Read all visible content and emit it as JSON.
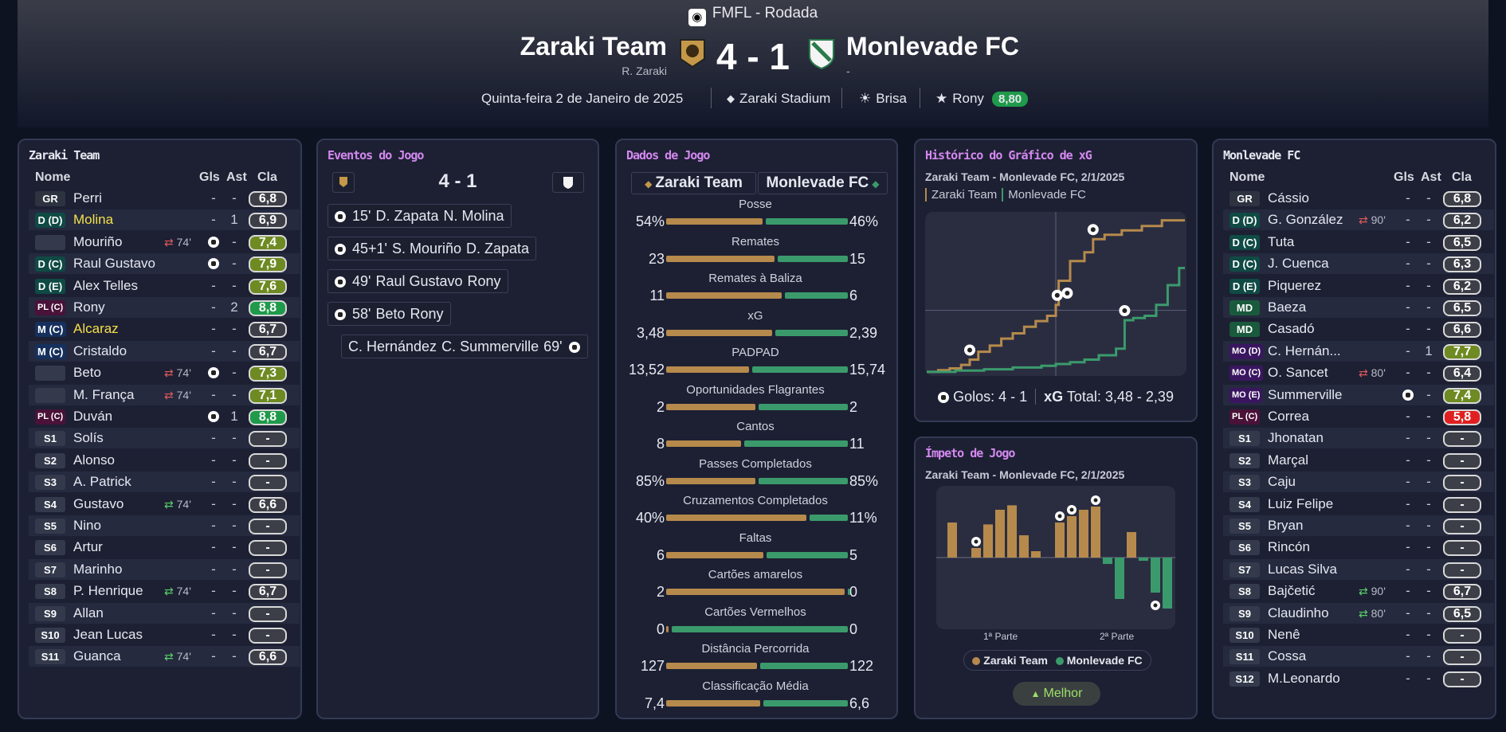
{
  "header": {
    "competition": "FMFL - Rodada",
    "home_name": "Zaraki Team",
    "home_manager": "R. Zaraki",
    "score": "4 - 1",
    "away_name": "Monlevade FC",
    "away_manager": "-",
    "date": "Quinta-feira 2 de Janeiro de 2025",
    "stadium": "Zaraki Stadium",
    "weather": "Brisa",
    "best_player": "Rony",
    "best_rating": "8,80"
  },
  "colors": {
    "home": "#b68a4c",
    "away": "#3b9a6c",
    "good": "#1f9a4a",
    "mid": "#6e8a22",
    "bad": "#e02020",
    "neutral": "#3c3f47",
    "title_purple": "#d489f0",
    "yellow": "#f4e04a"
  },
  "columns": {
    "name": "Nome",
    "goals": "Gls",
    "assists": "Ast",
    "rating": "Cla"
  },
  "home_panel": {
    "title": "Zaraki Team",
    "players": [
      {
        "pos": "GR",
        "name": "Perri",
        "goals": "-",
        "ast": "-",
        "rating": "6,8",
        "rc": "neutral"
      },
      {
        "pos": "D (D)",
        "name": "Molina",
        "hl": true,
        "goals": "-",
        "ast": "1",
        "rating": "6,9",
        "rc": "neutral"
      },
      {
        "pos": "",
        "name": "Mouriño",
        "sub": "74'",
        "subtype": "out",
        "goal": true,
        "goals": "",
        "ast": "-",
        "rating": "7,4",
        "rc": "mid"
      },
      {
        "pos": "D (C)",
        "name": "Raul Gustavo",
        "goal": true,
        "goals": "",
        "ast": "-",
        "rating": "7,9",
        "rc": "mid"
      },
      {
        "pos": "D (E)",
        "name": "Alex Telles",
        "goals": "-",
        "ast": "-",
        "rating": "7,6",
        "rc": "mid"
      },
      {
        "pos": "PL (C)",
        "name": "Rony",
        "goals": "-",
        "ast": "2",
        "rating": "8,8",
        "rc": "good"
      },
      {
        "pos": "M (C)",
        "name": "Alcaraz",
        "hl": true,
        "goals": "-",
        "ast": "-",
        "rating": "6,7",
        "rc": "neutral"
      },
      {
        "pos": "M (C)",
        "name": "Cristaldo",
        "goals": "-",
        "ast": "-",
        "rating": "6,7",
        "rc": "neutral"
      },
      {
        "pos": "",
        "name": "Beto",
        "sub": "74'",
        "subtype": "out",
        "goal": true,
        "goals": "",
        "ast": "-",
        "rating": "7,3",
        "rc": "mid"
      },
      {
        "pos": "",
        "name": "M. França",
        "sub": "74'",
        "subtype": "out",
        "goals": "-",
        "ast": "-",
        "rating": "7,1",
        "rc": "mid"
      },
      {
        "pos": "PL (C)",
        "name": "Duván",
        "goal": true,
        "goals": "",
        "ast": "1",
        "rating": "8,8",
        "rc": "good"
      },
      {
        "pos": "S1",
        "name": "Solís",
        "goals": "-",
        "ast": "-",
        "rating": "-",
        "rc": "neutral"
      },
      {
        "pos": "S2",
        "name": "Alonso",
        "goals": "-",
        "ast": "-",
        "rating": "-",
        "rc": "neutral"
      },
      {
        "pos": "S3",
        "name": "A. Patrick",
        "goals": "-",
        "ast": "-",
        "rating": "-",
        "rc": "neutral"
      },
      {
        "pos": "S4",
        "name": "Gustavo",
        "sub": "74'",
        "subtype": "in",
        "goals": "-",
        "ast": "-",
        "rating": "6,6",
        "rc": "neutral"
      },
      {
        "pos": "S5",
        "name": "Nino",
        "goals": "-",
        "ast": "-",
        "rating": "-",
        "rc": "neutral"
      },
      {
        "pos": "S6",
        "name": "Artur",
        "goals": "-",
        "ast": "-",
        "rating": "-",
        "rc": "neutral"
      },
      {
        "pos": "S7",
        "name": "Marinho",
        "goals": "-",
        "ast": "-",
        "rating": "-",
        "rc": "neutral"
      },
      {
        "pos": "S8",
        "name": "P. Henrique",
        "sub": "74'",
        "subtype": "in",
        "goals": "-",
        "ast": "-",
        "rating": "6,7",
        "rc": "neutral"
      },
      {
        "pos": "S9",
        "name": "Allan",
        "goals": "-",
        "ast": "-",
        "rating": "-",
        "rc": "neutral"
      },
      {
        "pos": "S10",
        "name": "Jean Lucas",
        "goals": "-",
        "ast": "-",
        "rating": "-",
        "rc": "neutral"
      },
      {
        "pos": "S11",
        "name": "Guanca",
        "sub": "74'",
        "subtype": "in",
        "goals": "-",
        "ast": "-",
        "rating": "6,6",
        "rc": "neutral"
      }
    ]
  },
  "away_panel": {
    "title": "Monlevade FC",
    "players": [
      {
        "pos": "GR",
        "name": "Cássio",
        "goals": "-",
        "ast": "-",
        "rating": "6,8",
        "rc": "neutral"
      },
      {
        "pos": "D (D)",
        "name": "G. González",
        "sub": "90'",
        "subtype": "out",
        "goals": "-",
        "ast": "-",
        "rating": "6,2",
        "rc": "neutral"
      },
      {
        "pos": "D (C)",
        "name": "Tuta",
        "goals": "-",
        "ast": "-",
        "rating": "6,5",
        "rc": "neutral"
      },
      {
        "pos": "D (C)",
        "name": "J. Cuenca",
        "goals": "-",
        "ast": "-",
        "rating": "6,3",
        "rc": "neutral"
      },
      {
        "pos": "D (E)",
        "name": "Piquerez",
        "goals": "-",
        "ast": "-",
        "rating": "6,2",
        "rc": "neutral"
      },
      {
        "pos": "MD",
        "name": "Baeza",
        "goals": "-",
        "ast": "-",
        "rating": "6,5",
        "rc": "neutral"
      },
      {
        "pos": "MD",
        "name": "Casadó",
        "goals": "-",
        "ast": "-",
        "rating": "6,6",
        "rc": "neutral"
      },
      {
        "pos": "MO (D)",
        "name": "C. Hernán...",
        "goals": "-",
        "ast": "1",
        "rating": "7,7",
        "rc": "mid"
      },
      {
        "pos": "MO (C)",
        "name": "O. Sancet",
        "sub": "80'",
        "subtype": "out",
        "goals": "-",
        "ast": "-",
        "rating": "6,4",
        "rc": "neutral"
      },
      {
        "pos": "MO (E)",
        "name": "Summerville",
        "goal": true,
        "goals": "",
        "ast": "-",
        "rating": "7,4",
        "rc": "mid"
      },
      {
        "pos": "PL (C)",
        "name": "Correa",
        "goals": "-",
        "ast": "-",
        "rating": "5,8",
        "rc": "bad"
      },
      {
        "pos": "S1",
        "name": "Jhonatan",
        "goals": "-",
        "ast": "-",
        "rating": "-",
        "rc": "neutral"
      },
      {
        "pos": "S2",
        "name": "Marçal",
        "goals": "-",
        "ast": "-",
        "rating": "-",
        "rc": "neutral"
      },
      {
        "pos": "S3",
        "name": "Caju",
        "goals": "-",
        "ast": "-",
        "rating": "-",
        "rc": "neutral"
      },
      {
        "pos": "S4",
        "name": "Luiz Felipe",
        "goals": "-",
        "ast": "-",
        "rating": "-",
        "rc": "neutral"
      },
      {
        "pos": "S5",
        "name": "Bryan",
        "goals": "-",
        "ast": "-",
        "rating": "-",
        "rc": "neutral"
      },
      {
        "pos": "S6",
        "name": "Rincón",
        "goals": "-",
        "ast": "-",
        "rating": "-",
        "rc": "neutral"
      },
      {
        "pos": "S7",
        "name": "Lucas Silva",
        "goals": "-",
        "ast": "-",
        "rating": "-",
        "rc": "neutral"
      },
      {
        "pos": "S8",
        "name": "Bajčetić",
        "sub": "90'",
        "subtype": "in",
        "goals": "-",
        "ast": "-",
        "rating": "6,7",
        "rc": "neutral"
      },
      {
        "pos": "S9",
        "name": "Claudinho",
        "sub": "80'",
        "subtype": "in",
        "goals": "-",
        "ast": "-",
        "rating": "6,5",
        "rc": "neutral"
      },
      {
        "pos": "S10",
        "name": "Nenê",
        "goals": "-",
        "ast": "-",
        "rating": "-",
        "rc": "neutral"
      },
      {
        "pos": "S11",
        "name": "Cossa",
        "goals": "-",
        "ast": "-",
        "rating": "-",
        "rc": "neutral"
      },
      {
        "pos": "S12",
        "name": "M.Leonardo",
        "goals": "-",
        "ast": "-",
        "rating": "-",
        "rc": "neutral"
      }
    ]
  },
  "events_panel": {
    "title": "Eventos do Jogo",
    "score": "4 - 1",
    "events": [
      {
        "side": "home",
        "time": "15'",
        "scorer": "D. Zapata",
        "assist": "N. Molina"
      },
      {
        "side": "home",
        "time": "45+1'",
        "scorer": "S. Mouriño",
        "assist": "D. Zapata"
      },
      {
        "side": "home",
        "time": "49'",
        "scorer": "Raul Gustavo",
        "assist": "Rony"
      },
      {
        "side": "home",
        "time": "58'",
        "scorer": "Beto",
        "assist": "Rony"
      },
      {
        "side": "away",
        "time": "69'",
        "scorer": "C. Summerville",
        "assist": "C. Hernández"
      }
    ]
  },
  "stats_panel": {
    "title": "Dados de Jogo",
    "home": "Zaraki Team",
    "away": "Monlevade FC",
    "stats": [
      {
        "name": "Posse",
        "home": "54%",
        "away": "46%",
        "hv": 54,
        "av": 46
      },
      {
        "name": "Remates",
        "home": "23",
        "away": "15",
        "hv": 23,
        "av": 15
      },
      {
        "name": "Remates à Baliza",
        "home": "11",
        "away": "6",
        "hv": 11,
        "av": 6
      },
      {
        "name": "xG",
        "home": "3,48",
        "away": "2,39",
        "hv": 3.48,
        "av": 2.39
      },
      {
        "name": "PADPAD",
        "home": "13,52",
        "away": "15,74",
        "hv": 13.52,
        "av": 15.74
      },
      {
        "name": "Oportunidades Flagrantes",
        "home": "2",
        "away": "2",
        "hv": 2,
        "av": 2
      },
      {
        "name": "Cantos",
        "home": "8",
        "away": "11",
        "hv": 8,
        "av": 11
      },
      {
        "name": "Passes Completados",
        "home": "85%",
        "away": "85%",
        "hv": 85,
        "av": 85
      },
      {
        "name": "Cruzamentos Completados",
        "home": "40%",
        "away": "11%",
        "hv": 40,
        "av": 11
      },
      {
        "name": "Faltas",
        "home": "6",
        "away": "5",
        "hv": 6,
        "av": 5
      },
      {
        "name": "Cartões amarelos",
        "home": "2",
        "away": "0",
        "hv": 2,
        "av": 0
      },
      {
        "name": "Cartões Vermelhos",
        "home": "0",
        "away": "0",
        "hv": 0,
        "av": 0
      },
      {
        "name": "Distância Percorrida",
        "home": "127",
        "away": "122",
        "hv": 127,
        "av": 122
      },
      {
        "name": "Classificação Média",
        "home": "7,4",
        "away": "6,6",
        "hv": 7.4,
        "av": 6.6
      }
    ]
  },
  "xg_panel": {
    "title": "Histórico do Gráfico de xG",
    "subtitle": "Zaraki Team - Monlevade FC, 2/1/2025",
    "legend_home": "Zaraki Team",
    "legend_away": "Monlevade FC",
    "goals_label": "Golos:",
    "goals_value": "4 - 1",
    "xg_label": "xG",
    "total_label": "Total:",
    "total_value": "3,48 - 2,39"
  },
  "momentum_panel": {
    "title": "Ímpeto de Jogo",
    "subtitle": "Zaraki Team - Monlevade FC, 2/1/2025",
    "half1": "1ª Parte",
    "half2": "2ª Parte",
    "legend_home": "Zaraki Team",
    "legend_away": "Monlevade FC",
    "button": "Melhor"
  },
  "chart_data": [
    {
      "type": "line",
      "series": [
        {
          "name": "Zaraki Team",
          "x": [
            0,
            4,
            8,
            12,
            15,
            18,
            22,
            26,
            30,
            34,
            38,
            42,
            45,
            46,
            50,
            55,
            58,
            62,
            68,
            75,
            82,
            90
          ],
          "y": [
            0.02,
            0.06,
            0.1,
            0.18,
            0.3,
            0.48,
            0.62,
            0.78,
            0.9,
            1.05,
            1.18,
            1.3,
            1.55,
            2.1,
            2.55,
            2.75,
            3.05,
            3.15,
            3.25,
            3.35,
            3.48,
            3.48
          ]
        },
        {
          "name": "Monlevade FC",
          "x": [
            0,
            10,
            20,
            30,
            40,
            45,
            50,
            55,
            60,
            66,
            69,
            72,
            76,
            80,
            84,
            88,
            90
          ],
          "y": [
            0.02,
            0.05,
            0.08,
            0.12,
            0.16,
            0.2,
            0.24,
            0.3,
            0.4,
            0.55,
            1.2,
            1.25,
            1.3,
            1.55,
            2.0,
            2.39,
            2.39
          ]
        }
      ]
    },
    {
      "type": "bar",
      "series": [
        {
          "name": "Zaraki Team",
          "values": [
            0.55,
            0,
            0.15,
            0.52,
            0.75,
            0.82,
            0.35,
            0.1,
            0,
            0.55,
            0.65,
            0.75,
            0.8,
            0,
            0,
            0.4,
            0,
            0,
            0,
            0
          ]
        },
        {
          "name": "Monlevade FC",
          "values": [
            0,
            0,
            0,
            0,
            0,
            0,
            0,
            0,
            0,
            0,
            0,
            0,
            0,
            0.1,
            0.65,
            0,
            0.05,
            0.55,
            0.8,
            0
          ]
        }
      ]
    }
  ]
}
